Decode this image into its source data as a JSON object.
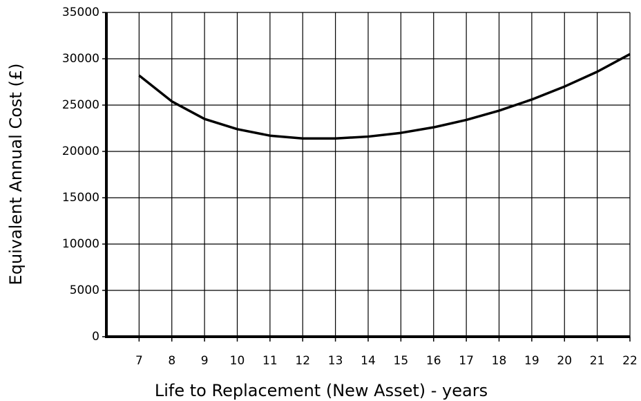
{
  "chart_data": {
    "type": "line",
    "x_label": "Life to Replacement (New Asset) - years",
    "y_label": "Equivalent Annual Cost (£)",
    "x": [
      7,
      8,
      9,
      10,
      11,
      12,
      13,
      14,
      15,
      16,
      17,
      18,
      19,
      20,
      21,
      22
    ],
    "values": [
      28200,
      25400,
      23500,
      22400,
      21700,
      21400,
      21400,
      21600,
      22000,
      22600,
      23400,
      24400,
      25600,
      27000,
      28600,
      30500
    ],
    "color": "#000000",
    "xlim": [
      6,
      22
    ],
    "xticks": [
      7,
      8,
      9,
      10,
      11,
      12,
      13,
      14,
      15,
      16,
      17,
      18,
      19,
      20,
      21,
      22
    ],
    "ylim": [
      0,
      35000
    ],
    "yticks": [
      0,
      5000,
      10000,
      15000,
      20000,
      25000,
      30000,
      35000
    ],
    "grid": true
  }
}
